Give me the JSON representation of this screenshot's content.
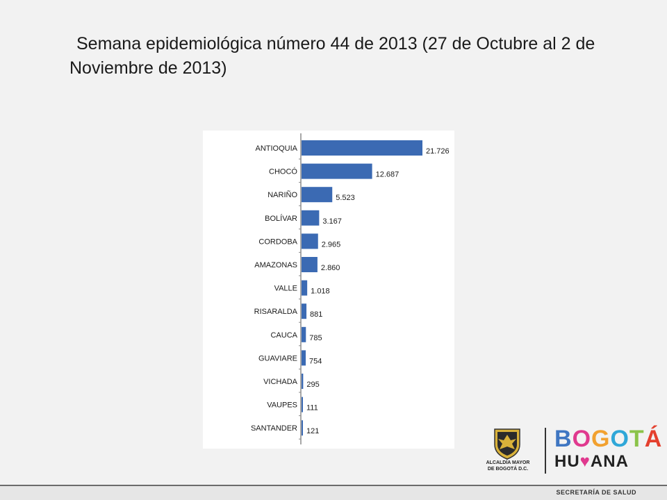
{
  "slide": {
    "title": "Semana epidemiológica número 44 de 2013 (27 de Octubre al 2 de Noviembre de 2013)"
  },
  "chart_data": {
    "type": "bar",
    "orientation": "horizontal",
    "categories": [
      "ANTIOQUIA",
      "CHOCÓ",
      "NARIÑO",
      "BOLÍVAR",
      "CORDOBA",
      "AMAZONAS",
      "VALLE",
      "RISARALDA",
      "CAUCA",
      "GUAVIARE",
      "VICHADA",
      "VAUPES",
      "SANTANDER"
    ],
    "values": [
      21726,
      12687,
      5523,
      3167,
      2965,
      2860,
      1018,
      881,
      785,
      754,
      295,
      111,
      121
    ],
    "value_labels": [
      "21.726",
      "12.687",
      "5.523",
      "3.167",
      "2.965",
      "2.860",
      "1.018",
      "881",
      "785",
      "754",
      "295",
      "111",
      "121"
    ],
    "bar_color": "#3b6ab3",
    "title": "",
    "xlabel": "",
    "ylabel": "",
    "xlim": [
      0,
      21726
    ],
    "grid": false,
    "legend": "none"
  },
  "logos": {
    "alcaldia_line1": "ALCALDÍA MAYOR",
    "alcaldia_line2": "DE BOGOTÁ D.C.",
    "bogota_letters": [
      "B",
      "O",
      "G",
      "O",
      "T",
      "Á"
    ],
    "humana_prefix": "HU",
    "humana_suffix": "ANA",
    "humana_heart": "♥"
  },
  "footer": {
    "text": "SECRETARÍA DE SALUD"
  }
}
